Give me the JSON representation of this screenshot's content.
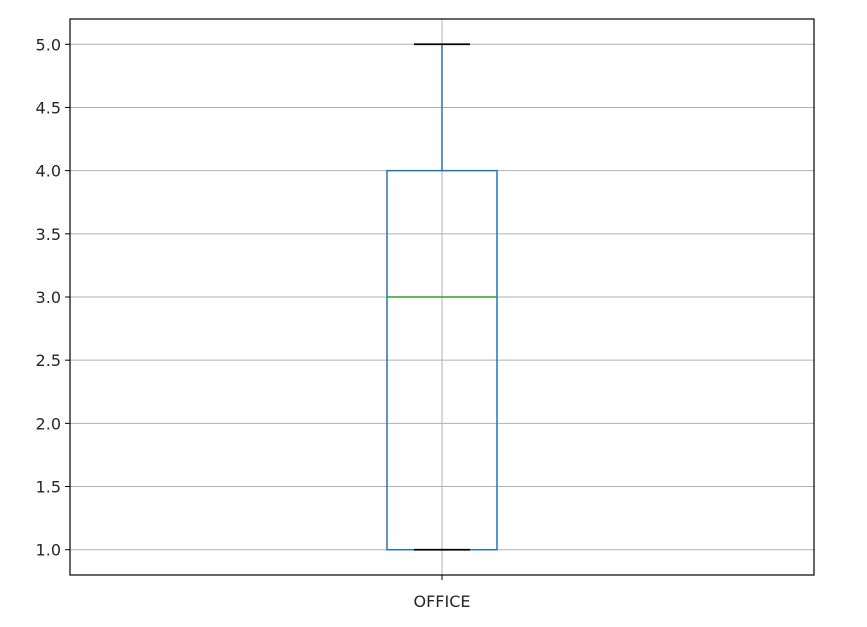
{
  "chart_data": {
    "type": "box",
    "categories": [
      "OFFICE"
    ],
    "boxes": [
      {
        "category": "OFFICE",
        "whisker_low": 1.0,
        "q1": 1.0,
        "median": 3.0,
        "q3": 4.0,
        "whisker_high": 5.0
      }
    ],
    "ylim": [
      0.8,
      5.2
    ],
    "y_ticks": [
      1.0,
      1.5,
      2.0,
      2.5,
      3.0,
      3.5,
      4.0,
      4.5,
      5.0
    ],
    "y_tick_labels": [
      "1.0",
      "1.5",
      "2.0",
      "2.5",
      "3.0",
      "3.5",
      "4.0",
      "4.5",
      "5.0"
    ],
    "grid": true,
    "colors": {
      "box": "#1f77b4",
      "median": "#2ca02c",
      "whisker": "#1f77b4",
      "cap": "#000000",
      "grid": "#b0b0b0",
      "axes": "#000000"
    }
  }
}
